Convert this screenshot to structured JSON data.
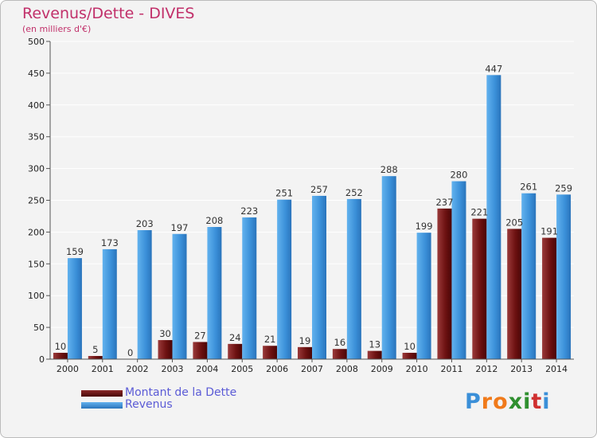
{
  "header": {
    "title": "Revenus/Dette - DIVES",
    "subtitle": "(en milliers d'€)"
  },
  "legend": {
    "items": [
      {
        "label": "Montant de la Dette",
        "color": "#6b0f0f"
      },
      {
        "label": "Revenus",
        "color": "#3a8fd8"
      }
    ]
  },
  "logo": {
    "letters": [
      {
        "ch": "P",
        "color": "#3a8fd8"
      },
      {
        "ch": "r",
        "color": "#f07a1a"
      },
      {
        "ch": "o",
        "color": "#f07a1a"
      },
      {
        "ch": "x",
        "color": "#2f8f2f"
      },
      {
        "ch": "i",
        "color": "#2f8f2f"
      },
      {
        "ch": "t",
        "color": "#d03030"
      },
      {
        "ch": "i",
        "color": "#3a8fd8"
      }
    ]
  },
  "chart_data": {
    "type": "bar",
    "title": "Revenus/Dette - DIVES",
    "subtitle": "(en milliers d'€)",
    "categories": [
      "2000",
      "2001",
      "2002",
      "2003",
      "2004",
      "2005",
      "2006",
      "2007",
      "2008",
      "2009",
      "2010",
      "2011",
      "2012",
      "2013",
      "2014"
    ],
    "series": [
      {
        "name": "Montant de la Dette",
        "color": "#6b0f0f",
        "values": [
          10,
          5,
          0,
          30,
          27,
          24,
          21,
          19,
          16,
          13,
          10,
          237,
          221,
          205,
          191
        ],
        "labels": [
          "10",
          "5",
          "0",
          "30",
          "27",
          "24",
          "21",
          "19",
          "16",
          "13",
          "10",
          "237",
          "221",
          "205",
          "191"
        ]
      },
      {
        "name": "Revenus",
        "color": "#3a8fd8",
        "values": [
          159,
          173,
          203,
          197,
          208,
          223,
          251,
          257,
          252,
          288,
          199,
          280,
          447,
          261,
          259
        ],
        "labels": [
          "159",
          "173",
          "203",
          "197",
          "208",
          "223",
          "251",
          "257",
          "252",
          "288",
          "199",
          "280",
          "447",
          "261",
          "259"
        ]
      }
    ],
    "ylim": [
      0,
      500
    ],
    "yticks": [
      0,
      50,
      100,
      150,
      200,
      250,
      300,
      350,
      400,
      450,
      500
    ],
    "grid": true,
    "legend_position": "bottom-left"
  }
}
